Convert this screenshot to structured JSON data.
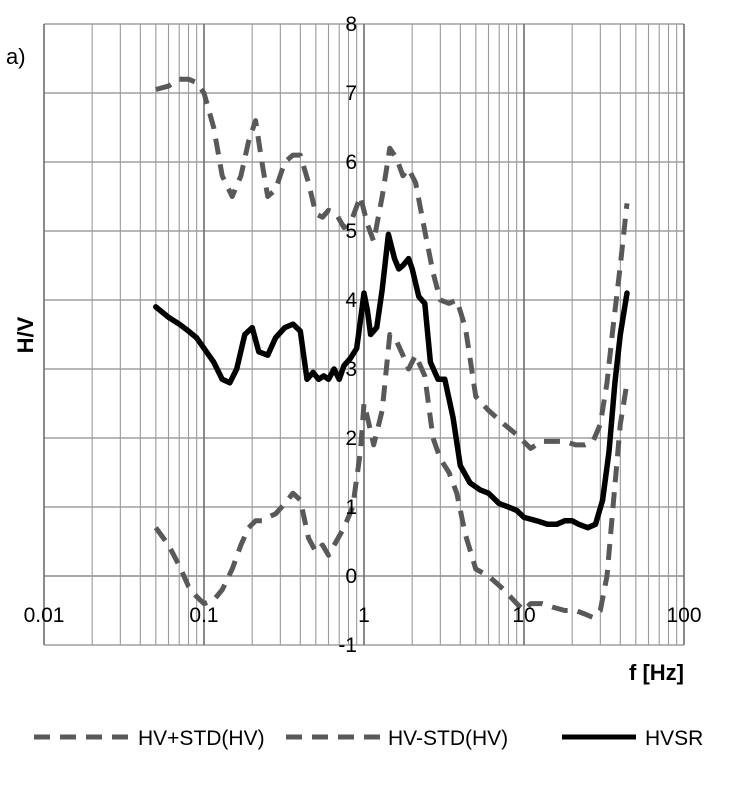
{
  "chart_data": {
    "type": "line",
    "panel_label": "a)",
    "xlabel": "f [Hz]",
    "ylabel": "H/V",
    "xscale": "log",
    "xlim": [
      0.01,
      100
    ],
    "ylim": [
      -1,
      8
    ],
    "x_ticks": [
      "0.01",
      "0.1",
      "1",
      "10",
      "100"
    ],
    "y_ticks": [
      "-1",
      "0",
      "1",
      "2",
      "3",
      "4",
      "5",
      "6",
      "7",
      "8"
    ],
    "grid": true,
    "legend_position": "bottom",
    "series": [
      {
        "name": "HV+STD(HV)",
        "color": "#595959",
        "style": "dashed",
        "x": [
          0.05,
          0.06,
          0.07,
          0.08,
          0.09,
          0.1,
          0.115,
          0.13,
          0.15,
          0.17,
          0.19,
          0.21,
          0.23,
          0.25,
          0.28,
          0.32,
          0.36,
          0.4,
          0.45,
          0.5,
          0.55,
          0.6,
          0.67,
          0.75,
          0.85,
          0.95,
          1.05,
          1.15,
          1.3,
          1.45,
          1.6,
          1.75,
          1.9,
          2.1,
          2.4,
          2.7,
          3.0,
          3.4,
          3.8,
          4.3,
          5.0,
          6.0,
          7.5,
          9.0,
          11,
          13,
          15,
          18,
          21,
          24,
          27,
          30,
          33,
          36,
          40,
          44
        ],
        "y": [
          7.05,
          7.1,
          7.2,
          7.2,
          7.15,
          7.0,
          6.5,
          5.8,
          5.5,
          5.8,
          6.3,
          6.6,
          6.0,
          5.5,
          5.6,
          6.0,
          6.1,
          6.1,
          5.7,
          5.25,
          5.2,
          5.3,
          5.25,
          5.05,
          5.2,
          5.5,
          5.1,
          4.85,
          5.5,
          6.2,
          6.05,
          5.8,
          5.9,
          5.7,
          5.0,
          4.4,
          4.0,
          3.95,
          4.0,
          3.6,
          2.6,
          2.4,
          2.2,
          2.05,
          1.85,
          1.95,
          1.95,
          1.95,
          1.9,
          1.9,
          1.95,
          2.2,
          2.8,
          3.6,
          4.5,
          5.4
        ]
      },
      {
        "name": "HV-STD(HV)",
        "color": "#595959",
        "style": "dashed",
        "x": [
          0.05,
          0.06,
          0.07,
          0.08,
          0.09,
          0.1,
          0.115,
          0.13,
          0.15,
          0.17,
          0.19,
          0.21,
          0.23,
          0.25,
          0.28,
          0.32,
          0.36,
          0.4,
          0.45,
          0.5,
          0.55,
          0.6,
          0.67,
          0.75,
          0.85,
          0.95,
          1.0,
          1.05,
          1.15,
          1.3,
          1.45,
          1.6,
          1.75,
          1.9,
          2.1,
          2.4,
          2.7,
          3.0,
          3.4,
          3.8,
          4.3,
          5.0,
          6.0,
          7.5,
          9.0,
          10,
          11,
          13,
          15,
          18,
          21,
          24,
          27,
          30,
          33,
          36,
          40,
          44
        ],
        "y": [
          0.7,
          0.45,
          0.15,
          -0.15,
          -0.3,
          -0.4,
          -0.35,
          -0.2,
          0.1,
          0.45,
          0.7,
          0.8,
          0.8,
          0.85,
          0.9,
          1.05,
          1.2,
          1.1,
          0.55,
          0.35,
          0.45,
          0.3,
          0.5,
          0.7,
          1.0,
          1.8,
          2.5,
          2.3,
          1.9,
          2.4,
          3.5,
          3.4,
          3.2,
          3.0,
          3.2,
          2.9,
          2.0,
          1.7,
          1.5,
          1.2,
          0.6,
          0.1,
          0.0,
          -0.2,
          -0.4,
          -0.5,
          -0.4,
          -0.4,
          -0.45,
          -0.5,
          -0.5,
          -0.55,
          -0.6,
          -0.5,
          0.0,
          1.0,
          2.2,
          2.8
        ]
      },
      {
        "name": "HVSR",
        "color": "#000000",
        "style": "solid",
        "x": [
          0.05,
          0.06,
          0.07,
          0.08,
          0.09,
          0.1,
          0.115,
          0.13,
          0.145,
          0.16,
          0.18,
          0.2,
          0.22,
          0.25,
          0.28,
          0.32,
          0.36,
          0.4,
          0.44,
          0.48,
          0.52,
          0.56,
          0.6,
          0.65,
          0.7,
          0.75,
          0.82,
          0.9,
          0.95,
          1.0,
          1.05,
          1.1,
          1.2,
          1.3,
          1.42,
          1.55,
          1.65,
          1.75,
          1.9,
          2.0,
          2.2,
          2.4,
          2.6,
          2.9,
          3.2,
          3.6,
          4.0,
          4.6,
          5.3,
          6.0,
          7.0,
          8.0,
          9.0,
          10,
          12,
          14,
          16,
          18,
          20,
          22,
          25,
          28,
          31,
          34,
          37,
          40,
          44
        ],
        "y": [
          3.9,
          3.75,
          3.65,
          3.55,
          3.45,
          3.3,
          3.1,
          2.85,
          2.8,
          3.0,
          3.5,
          3.6,
          3.25,
          3.2,
          3.45,
          3.6,
          3.65,
          3.55,
          2.85,
          2.95,
          2.85,
          2.9,
          2.85,
          3.0,
          2.85,
          3.05,
          3.15,
          3.3,
          3.7,
          4.1,
          3.85,
          3.5,
          3.6,
          4.15,
          4.95,
          4.6,
          4.45,
          4.5,
          4.6,
          4.45,
          4.05,
          3.95,
          3.1,
          2.85,
          2.85,
          2.3,
          1.6,
          1.35,
          1.25,
          1.2,
          1.05,
          1.0,
          0.95,
          0.85,
          0.8,
          0.75,
          0.75,
          0.8,
          0.8,
          0.75,
          0.7,
          0.75,
          1.1,
          1.8,
          2.8,
          3.5,
          4.1
        ]
      }
    ]
  }
}
